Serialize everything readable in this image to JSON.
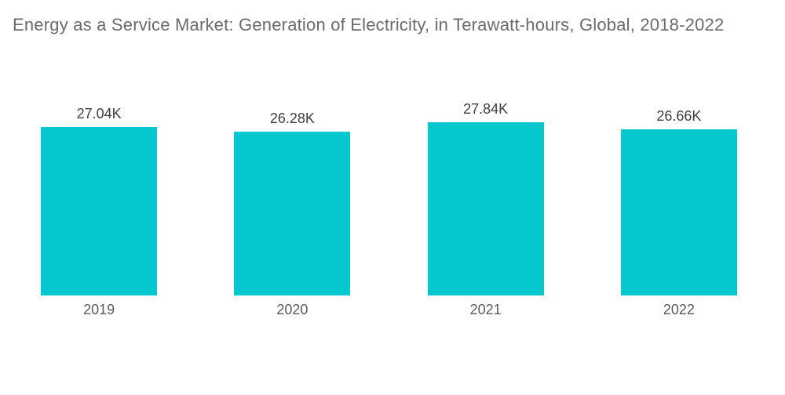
{
  "page": {
    "background": "#ffffff"
  },
  "chart_data": {
    "type": "bar",
    "title": "Energy as a Service Market: Generation of Electricity, in Terawatt-hours, Global, 2018-2022",
    "unit": "Terawatt-hours",
    "categories": [
      "2019",
      "2020",
      "2021",
      "2022"
    ],
    "values": [
      27040,
      26280,
      27840,
      26660
    ],
    "value_labels": [
      "27.04K",
      "26.28K",
      "27.84K",
      "26.66K"
    ],
    "bar_color": "#05C8CE",
    "title_color": "#6a6a6a",
    "value_label_color": "#3f3f3f",
    "category_label_color": "#5a5a5a",
    "grid": false,
    "axes_hidden": true,
    "label_position": "above-bars"
  }
}
